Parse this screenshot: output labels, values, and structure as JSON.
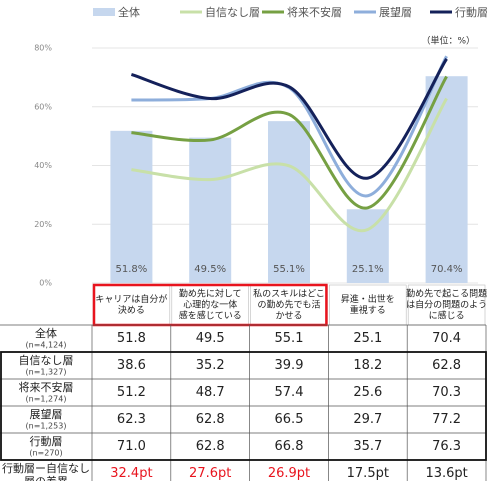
{
  "chart_data": {
    "type": "bar_line",
    "unit_note": "（単位：%）",
    "categories": [
      [
        "キャリアは自分が",
        "決める"
      ],
      [
        "勤め先に対して",
        "心理的な一体",
        "感を感じている"
      ],
      [
        "私のスキルはどこ",
        "の勤め先でも活",
        "かせる"
      ],
      [
        "昇進・出世を",
        "重視する"
      ],
      [
        "勤め先で起こる問題",
        "は自分の問題のよう",
        "に感じる"
      ]
    ],
    "series": [
      {
        "name": "全体",
        "type": "bar",
        "color": "#c6d7ee",
        "values": [
          51.8,
          49.5,
          55.1,
          25.1,
          70.4
        ],
        "value_labels": [
          "51.8%",
          "49.5%",
          "55.1%",
          "25.1%",
          "70.4%"
        ]
      },
      {
        "name": "自信なし層",
        "type": "line",
        "color": "#c8e0a8",
        "values": [
          38.6,
          35.2,
          39.9,
          18.2,
          62.8
        ]
      },
      {
        "name": "将来不安層",
        "type": "line",
        "color": "#76a043",
        "values": [
          51.2,
          48.7,
          57.4,
          25.6,
          70.3
        ]
      },
      {
        "name": "展望層",
        "type": "line",
        "color": "#8eaedb",
        "values": [
          62.3,
          62.8,
          66.5,
          29.7,
          77.2
        ]
      },
      {
        "name": "行動層",
        "type": "line",
        "color": "#14215a",
        "values": [
          71.0,
          62.8,
          66.8,
          35.7,
          76.3
        ]
      }
    ],
    "ylim": [
      0,
      80
    ],
    "yticks": [
      {
        "value": 0,
        "label": "0%"
      },
      {
        "value": 20,
        "label": "20%"
      },
      {
        "value": 40,
        "label": "40%"
      },
      {
        "value": 60,
        "label": "60%"
      },
      {
        "value": 80,
        "label": "80%"
      }
    ]
  },
  "table": {
    "rows": [
      {
        "label": [
          "全体"
        ],
        "n": "(n=4,124)",
        "cells": [
          "51.8",
          "49.5",
          "55.1",
          "25.1",
          "70.4"
        ]
      },
      {
        "label": [
          "自信なし層"
        ],
        "n": "(n=1,327)",
        "cells": [
          "38.6",
          "35.2",
          "39.9",
          "18.2",
          "62.8"
        ]
      },
      {
        "label": [
          "将来不安層"
        ],
        "n": "(n=1,274)",
        "cells": [
          "51.2",
          "48.7",
          "57.4",
          "25.6",
          "70.3"
        ]
      },
      {
        "label": [
          "展望層"
        ],
        "n": "(n=1,253)",
        "cells": [
          "62.3",
          "62.8",
          "66.5",
          "29.7",
          "77.2"
        ]
      },
      {
        "label": [
          "行動層"
        ],
        "n": "(n=270)",
        "cells": [
          "71.0",
          "62.8",
          "66.8",
          "35.7",
          "76.3"
        ]
      },
      {
        "label": [
          "行動層ー自信なし",
          "層の差異"
        ],
        "cells": [
          "32.4pt",
          "27.6pt",
          "26.9pt",
          "17.5pt",
          "13.6pt"
        ],
        "highlight": [
          true,
          true,
          true,
          false,
          false
        ]
      }
    ]
  }
}
